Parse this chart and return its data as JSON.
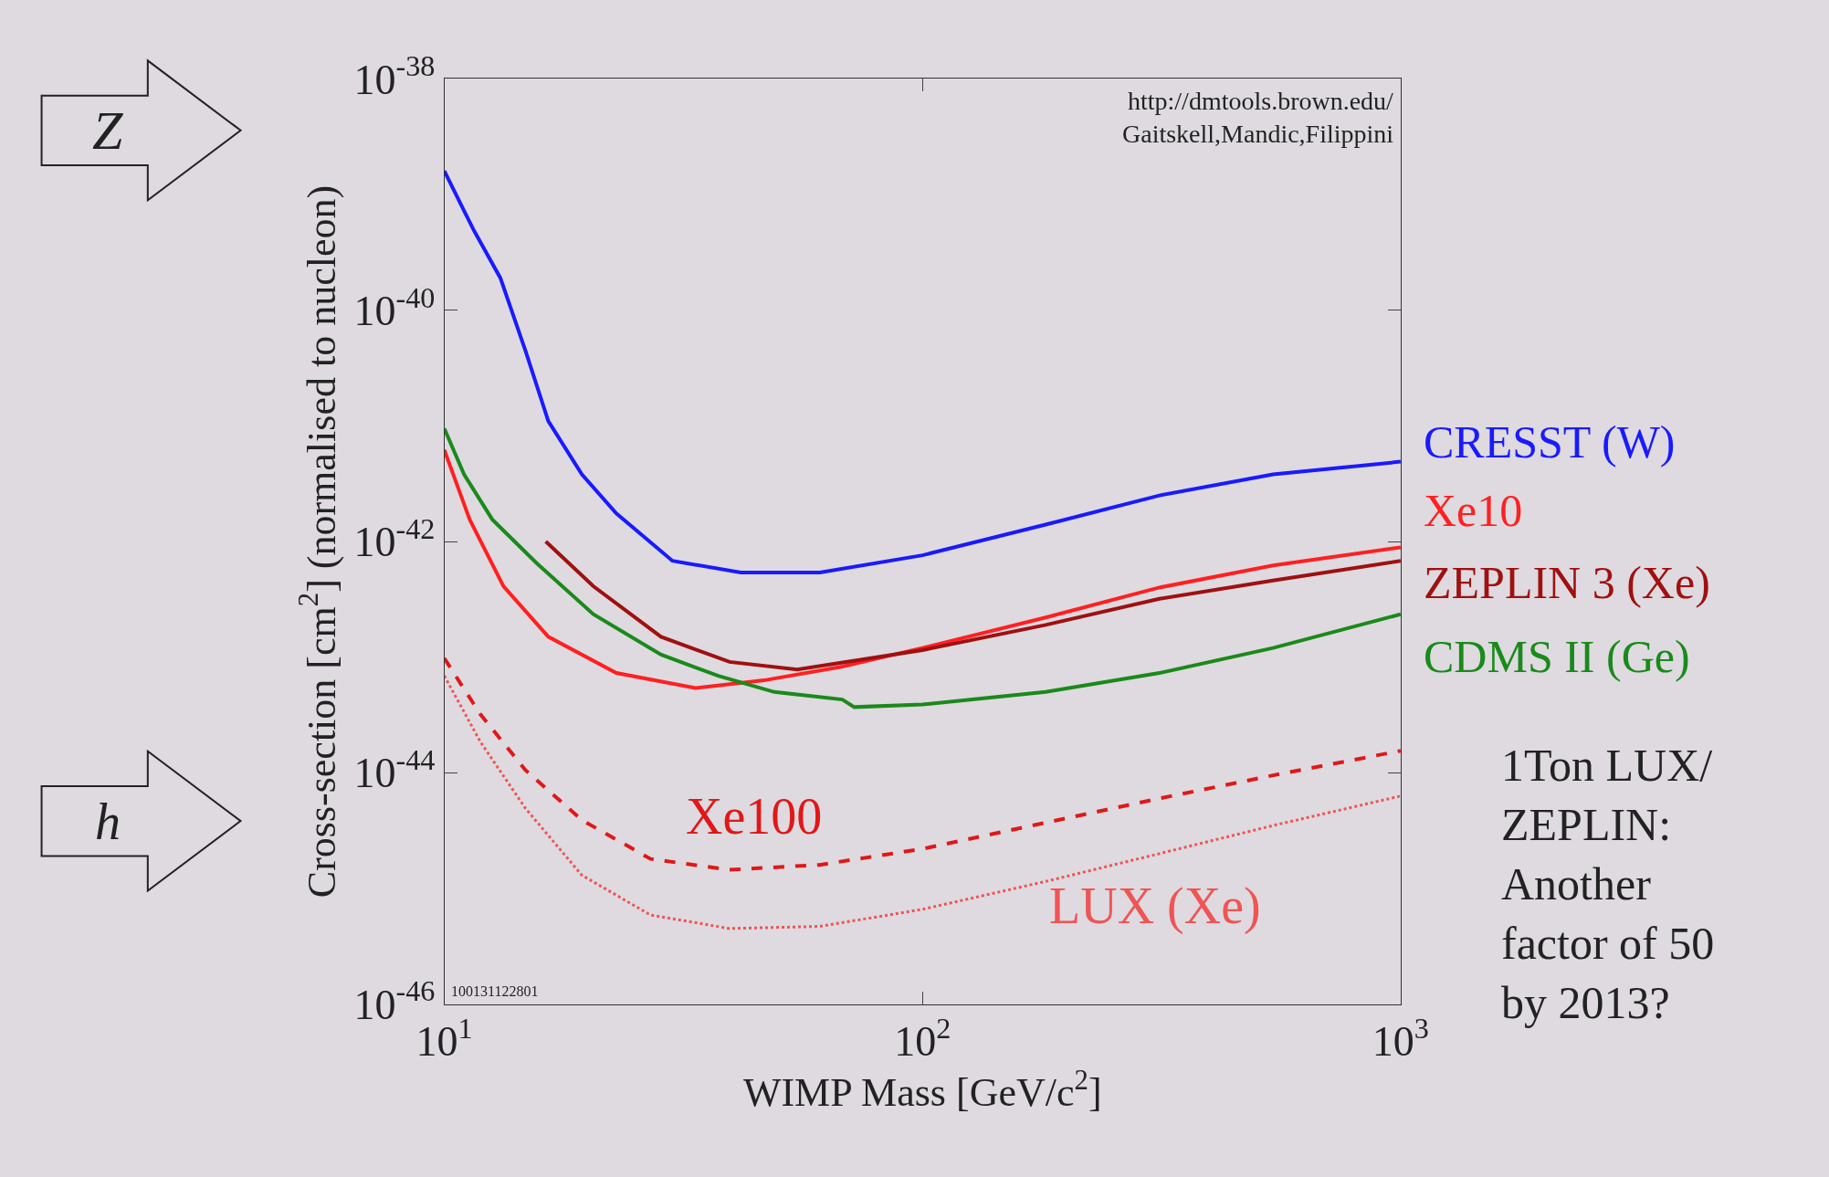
{
  "chart_data": {
    "type": "line",
    "xlabel": "WIMP Mass [GeV/c$^{2}$]",
    "ylabel": "Cross-section [cm$^{2}$] (normalised to nucleon)",
    "log": "xy",
    "xlim": [
      10,
      1000
    ],
    "ylim": [
      1e-46,
      1e-38
    ],
    "xticks": [
      {
        "value": 10,
        "label": "10$^{1}$"
      },
      {
        "value": 100,
        "label": "10$^{2}$"
      },
      {
        "value": 1000,
        "label": "10$^{3}$"
      }
    ],
    "yticks": [
      {
        "value": 1e-46,
        "label": "10$^{-46}$"
      },
      {
        "value": 1e-44,
        "label": "10$^{-44}$"
      },
      {
        "value": 1e-42,
        "label": "10$^{-42}$"
      },
      {
        "value": 1e-40,
        "label": "10$^{-40}$"
      },
      {
        "value": 1e-38,
        "label": "10$^{-38}$"
      }
    ],
    "grid": false,
    "legend": false,
    "marker": "none",
    "series": [
      {
        "name": "CRESST (W)",
        "color": "#1a1aff",
        "line_style": "solid",
        "x": [
          10,
          11.5,
          13.1,
          14.8,
          16.5,
          19.4,
          22.9,
          30,
          41.7,
          61,
          100,
          181,
          313,
          541,
          1000
        ],
        "values": [
          1.6e-39,
          5e-40,
          1.9e-40,
          4.4e-41,
          1.1e-41,
          3.8e-42,
          1.75e-42,
          6.8e-43,
          5.4e-43,
          5.4e-43,
          7.6e-43,
          1.4e-42,
          2.5e-42,
          3.8e-42,
          4.9e-42
        ]
      },
      {
        "name": "Xe10",
        "color": "#ff2020",
        "line_style": "solid",
        "x": [
          10,
          11.3,
          13.3,
          16.5,
          22.9,
          33.5,
          46.6,
          68,
          100,
          181,
          313,
          541,
          1000
        ],
        "values": [
          6.2e-42,
          1.55e-42,
          4.1e-43,
          1.5e-43,
          7.3e-44,
          5.4e-44,
          6.3e-44,
          8.3e-44,
          1.2e-43,
          2.2e-43,
          4e-43,
          6.2e-43,
          8.9e-43
        ]
      },
      {
        "name": "ZEPLIN 3 (Xe)",
        "color": "#a01010",
        "line_style": "solid",
        "x": [
          16.3,
          20.5,
          28.4,
          39.5,
          54.7,
          100,
          181,
          313,
          541,
          1000
        ],
        "values": [
          1e-42,
          4.1e-43,
          1.5e-43,
          9.1e-44,
          7.8e-44,
          1.15e-43,
          1.9e-43,
          3.2e-43,
          4.6e-43,
          6.8e-43
        ]
      },
      {
        "name": "CDMS II (Ge)",
        "color": "#1a8a1a",
        "line_style": "solid",
        "x": [
          10,
          11,
          12.6,
          15.6,
          20.5,
          28.4,
          37.4,
          49,
          68,
          72,
          100,
          181,
          313,
          541,
          1000
        ],
        "values": [
          9.5e-42,
          3.8e-42,
          1.55e-42,
          6.5e-43,
          2.35e-43,
          1.05e-43,
          6.9e-44,
          5e-44,
          4.3e-44,
          3.7e-44,
          3.9e-44,
          5e-44,
          7.3e-44,
          1.2e-43,
          2.35e-43
        ]
      },
      {
        "name": "Xe100",
        "color": "#e01818",
        "line_style": "dashed",
        "x": [
          10,
          11.9,
          14.8,
          19.4,
          27,
          39.5,
          61,
          100,
          181,
          313,
          541,
          1000
        ],
        "values": [
          9.8e-44,
          3.2e-44,
          1.05e-44,
          3.9e-45,
          1.8e-45,
          1.45e-45,
          1.6e-45,
          2.2e-45,
          3.7e-45,
          6e-45,
          9.5e-45,
          1.55e-44
        ]
      },
      {
        "name": "LUX (Xe)",
        "color": "#ee5555",
        "line_style": "dotted",
        "x": [
          10,
          11.9,
          14.8,
          19.4,
          27,
          39.5,
          61,
          100,
          181,
          313,
          541,
          1000
        ],
        "values": [
          6.9e-44,
          1.85e-44,
          4.9e-45,
          1.3e-45,
          5.9e-46,
          4.5e-46,
          4.7e-46,
          6.6e-46,
          1.15e-45,
          2e-45,
          3.5e-45,
          6.3e-45
        ]
      }
    ],
    "annotations": [
      "http://dmtools.brown.edu/",
      "Gaitskell,Mandic,Filippini",
      "100131122801",
      "1Ton LUX/\nZEPLIN:\nAnother\nfactor of 50\nby 2013?",
      "Z",
      "h"
    ]
  }
}
